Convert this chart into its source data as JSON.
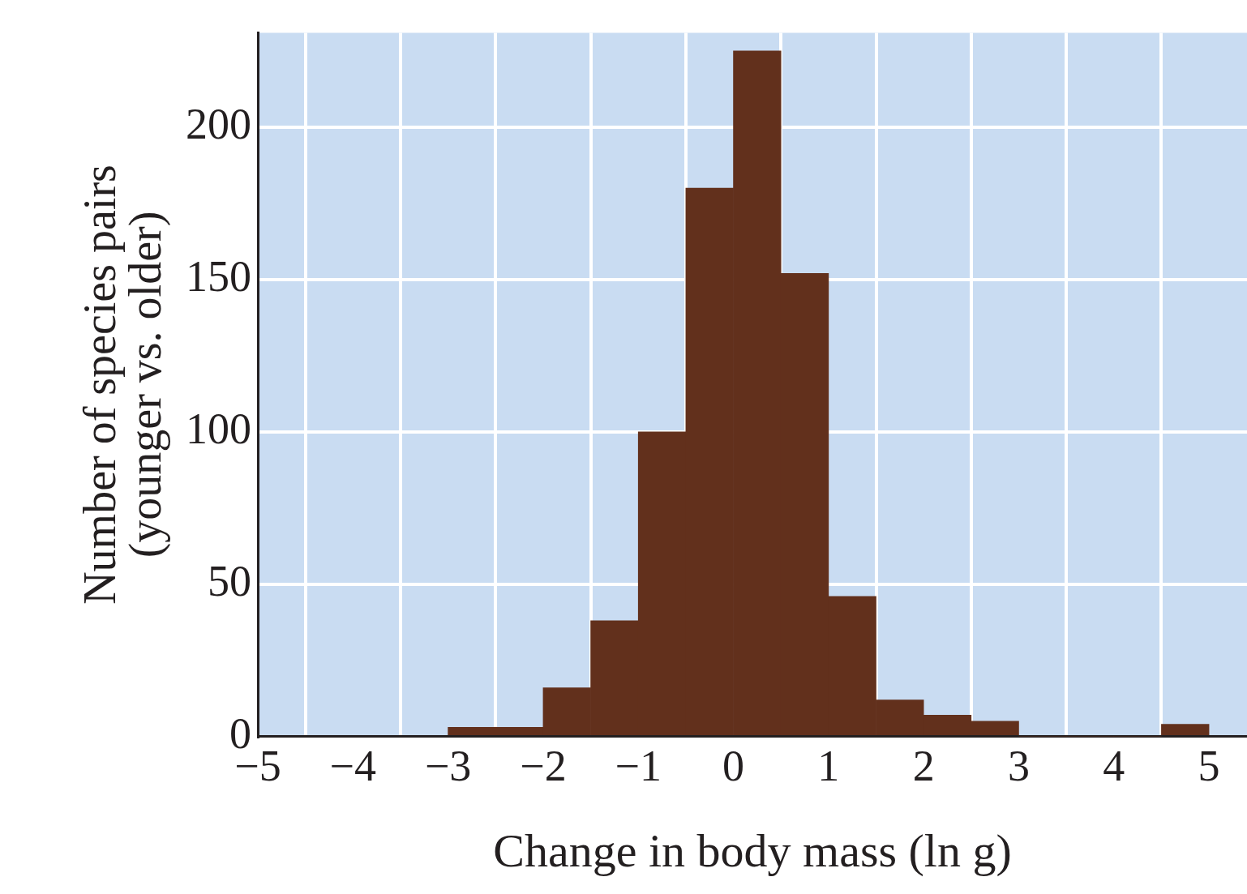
{
  "chart_data": {
    "type": "histogram",
    "xlabel": "Change in body mass (ln g)",
    "ylabel": "Number of species pairs\n(younger vs. older)",
    "bins": [
      -3,
      -2.5,
      -2,
      -1.5,
      -1,
      -0.5,
      0,
      0.5,
      1,
      1.5,
      2,
      2.5,
      3,
      3.5,
      4,
      4.5,
      5
    ],
    "values": [
      3,
      3,
      16,
      38,
      100,
      180,
      225,
      152,
      46,
      12,
      7,
      5,
      0,
      0,
      0,
      4
    ],
    "color": "#62301c",
    "xlim": [
      -5,
      5.4
    ],
    "xticks": [
      -5,
      -4,
      -3,
      -2,
      -1,
      0,
      1,
      2,
      3,
      4,
      5
    ],
    "ylim": [
      0,
      231
    ],
    "yticks": [
      0,
      50,
      100,
      150,
      200
    ],
    "grid": true,
    "legend": false
  }
}
